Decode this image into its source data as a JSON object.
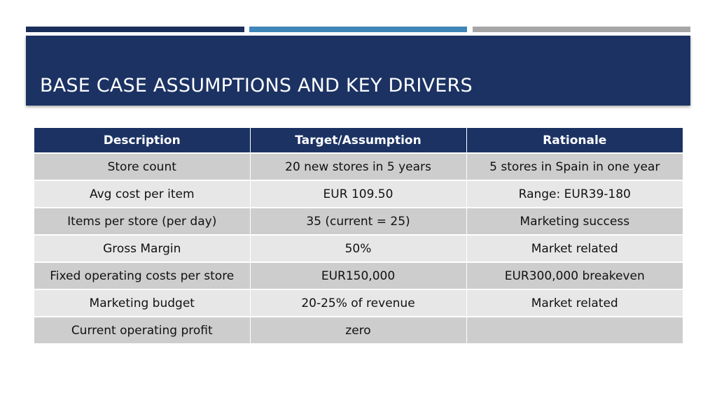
{
  "colors": {
    "accent_1": "#1b2f5b",
    "accent_2": "#3f86b9",
    "accent_3": "#a6a6a6",
    "title_band": "#1b3263",
    "header_row": "#1b3263",
    "row_dark": "#cdcdce",
    "row_light": "#e7e7e8"
  },
  "slide": {
    "title": "BASE CASE ASSUMPTIONS AND KEY DRIVERS"
  },
  "table": {
    "headers": [
      "Description",
      "Target/Assumption",
      "Rationale"
    ],
    "rows": [
      [
        "Store count",
        "20 new stores in 5 years",
        "5 stores in Spain in one year"
      ],
      [
        "Avg cost per item",
        "EUR 109.50",
        "Range: EUR39-180"
      ],
      [
        "Items per store (per day)",
        "35 (current = 25)",
        "Marketing success"
      ],
      [
        "Gross Margin",
        "50%",
        "Market related"
      ],
      [
        "Fixed operating costs per store",
        "EUR150,000",
        "EUR300,000 breakeven"
      ],
      [
        "Marketing budget",
        "20-25% of revenue",
        "Market related"
      ],
      [
        "Current operating profit",
        "zero",
        ""
      ]
    ]
  }
}
